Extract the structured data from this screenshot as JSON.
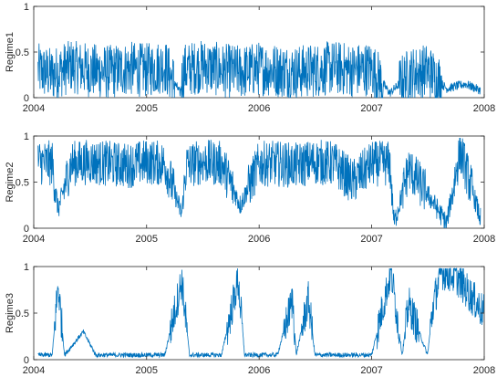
{
  "chart_data": [
    {
      "type": "line",
      "ylabel": "Regime1",
      "ylim": [
        0,
        1
      ],
      "xlim": [
        "2004-01-01",
        "2008-01-01"
      ],
      "yticks": [
        "0",
        "0.5",
        "1"
      ],
      "xticks": [
        "2004",
        "2005",
        "2006",
        "2007",
        "2008"
      ],
      "color": "#0072BD",
      "x": [
        "2004-01-15",
        "2004-03-01",
        "2004-05-01",
        "2004-07-01",
        "2004-09-01",
        "2004-11-01",
        "2005-01-01",
        "2005-03-01",
        "2005-04-20",
        "2005-05-01",
        "2005-07-01",
        "2005-09-01",
        "2005-11-01",
        "2006-01-01",
        "2006-03-01",
        "2006-05-01",
        "2006-07-01",
        "2006-09-01",
        "2006-11-01",
        "2007-01-01",
        "2007-03-01",
        "2007-05-01",
        "2007-07-01",
        "2007-09-01",
        "2007-11-01",
        "2007-12-20"
      ],
      "y": [
        0.3,
        0.25,
        0.35,
        0.3,
        0.28,
        0.32,
        0.3,
        0.35,
        0.05,
        0.3,
        0.35,
        0.3,
        0.28,
        0.32,
        0.3,
        0.28,
        0.3,
        0.33,
        0.3,
        0.32,
        0.05,
        0.25,
        0.3,
        0.1,
        0.15,
        0.08
      ]
    },
    {
      "type": "line",
      "ylabel": "Regime2",
      "ylim": [
        0,
        1
      ],
      "xlim": [
        "2004-01-01",
        "2008-01-01"
      ],
      "yticks": [
        "0",
        "0.5",
        "1"
      ],
      "xticks": [
        "2004",
        "2005",
        "2006",
        "2007",
        "2008"
      ],
      "color": "#0072BD",
      "x": [
        "2004-01-15",
        "2004-03-01",
        "2004-03-20",
        "2004-05-01",
        "2004-07-01",
        "2004-09-01",
        "2004-11-01",
        "2005-01-01",
        "2005-03-01",
        "2005-04-25",
        "2005-05-10",
        "2005-07-01",
        "2005-09-01",
        "2005-11-01",
        "2006-01-01",
        "2006-03-01",
        "2006-05-01",
        "2006-07-01",
        "2006-09-01",
        "2006-11-01",
        "2007-01-01",
        "2007-03-01",
        "2007-03-15",
        "2007-05-01",
        "2007-07-15",
        "2007-09-01",
        "2007-10-15",
        "2007-12-20"
      ],
      "y": [
        0.72,
        0.7,
        0.2,
        0.7,
        0.72,
        0.7,
        0.68,
        0.72,
        0.7,
        0.15,
        0.68,
        0.72,
        0.7,
        0.25,
        0.7,
        0.7,
        0.68,
        0.72,
        0.7,
        0.5,
        0.7,
        0.7,
        0.05,
        0.65,
        0.3,
        0.05,
        0.85,
        0.1
      ]
    },
    {
      "type": "line",
      "ylabel": "Regime3",
      "ylim": [
        0,
        1
      ],
      "xlim": [
        "2004-01-01",
        "2008-01-01"
      ],
      "yticks": [
        "0",
        "0.5",
        "1"
      ],
      "xticks": [
        "2004",
        "2005",
        "2006",
        "2007",
        "2008"
      ],
      "color": "#0072BD",
      "x": [
        "2004-01-15",
        "2004-03-01",
        "2004-03-20",
        "2004-04-10",
        "2004-06-10",
        "2004-07-20",
        "2004-09-01",
        "2004-11-01",
        "2005-01-01",
        "2005-03-01",
        "2005-04-25",
        "2005-05-20",
        "2005-07-01",
        "2005-09-01",
        "2005-10-25",
        "2005-11-15",
        "2006-01-01",
        "2006-03-01",
        "2006-04-20",
        "2006-05-01",
        "2006-06-10",
        "2006-07-01",
        "2006-09-01",
        "2006-11-01",
        "2007-01-01",
        "2007-03-05",
        "2007-04-10",
        "2007-05-01",
        "2007-07-01",
        "2007-07-20",
        "2007-08-15",
        "2007-10-01",
        "2007-12-31"
      ],
      "y": [
        0.05,
        0.05,
        0.8,
        0.05,
        0.3,
        0.05,
        0.05,
        0.05,
        0.05,
        0.05,
        0.85,
        0.05,
        0.05,
        0.05,
        0.85,
        0.05,
        0.05,
        0.05,
        0.65,
        0.05,
        0.65,
        0.05,
        0.05,
        0.05,
        0.05,
        0.95,
        0.05,
        0.6,
        0.05,
        0.6,
        0.95,
        0.9,
        0.5
      ]
    }
  ]
}
